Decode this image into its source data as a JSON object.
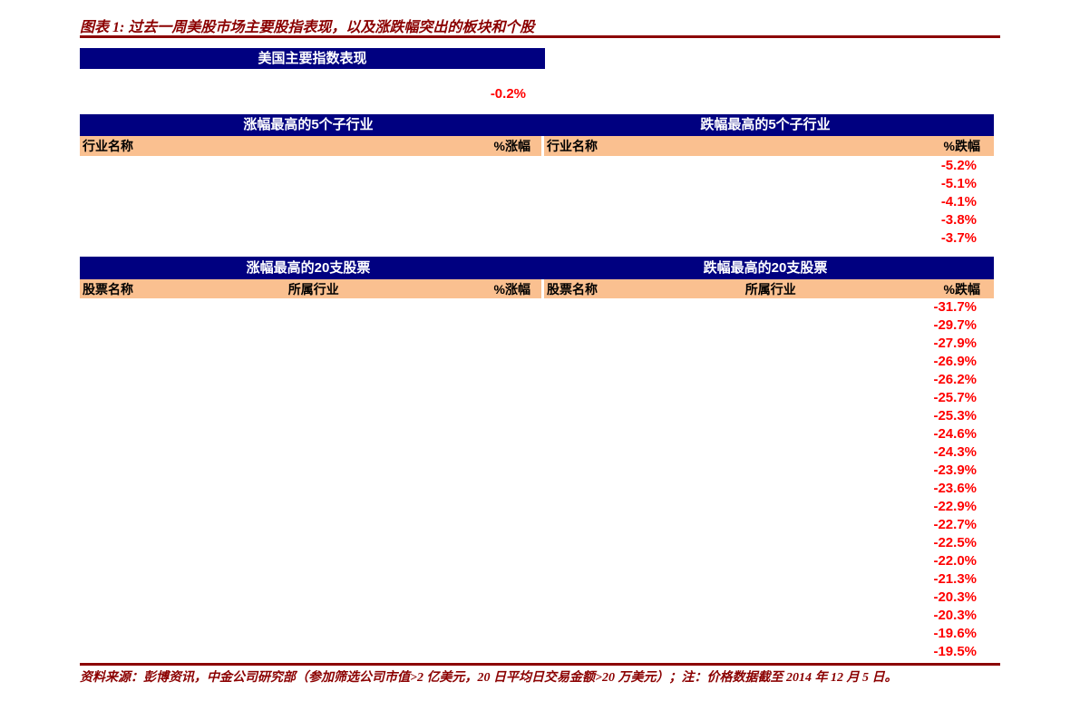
{
  "title": "图表 1: 过去一周美股市场主要股指表现，以及涨跌幅突出的板块和个股",
  "colors": {
    "header_navy": "#000080",
    "column_header_peach": "#FAC090",
    "value_red": "#FF0000",
    "title_dark_red": "#8B0000"
  },
  "index_section": {
    "header": "美国主要指数表现",
    "visible_change_value": "-0.2%"
  },
  "industry_section": {
    "gainers_header": "涨幅最高的5个子行业",
    "losers_header": "跌幅最高的5个子行业",
    "gainers_columns": [
      "行业名称",
      "%涨幅"
    ],
    "losers_columns": [
      "行业名称",
      "%跌幅"
    ],
    "losers_values": [
      "-5.2%",
      "-5.1%",
      "-4.1%",
      "-3.8%",
      "-3.7%"
    ]
  },
  "stock_section": {
    "gainers_header": "涨幅最高的20支股票",
    "losers_header": "跌幅最高的20支股票",
    "gainers_columns": [
      "股票名称",
      "所属行业",
      "%涨幅"
    ],
    "losers_columns": [
      "股票名称",
      "所属行业",
      "%跌幅"
    ],
    "losers_values": [
      "-31.7%",
      "-29.7%",
      "-27.9%",
      "-26.9%",
      "-26.2%",
      "-25.7%",
      "-25.3%",
      "-24.6%",
      "-24.3%",
      "-23.9%",
      "-23.6%",
      "-22.9%",
      "-22.7%",
      "-22.5%",
      "-22.0%",
      "-21.3%",
      "-20.3%",
      "-20.3%",
      "-19.6%",
      "-19.5%"
    ]
  },
  "footer": "资料来源：彭博资讯，中金公司研究部（参加筛选公司市值>2 亿美元，20 日平均日交易金额>20 万美元）；注：价格数据截至 2014 年 12 月 5 日。"
}
